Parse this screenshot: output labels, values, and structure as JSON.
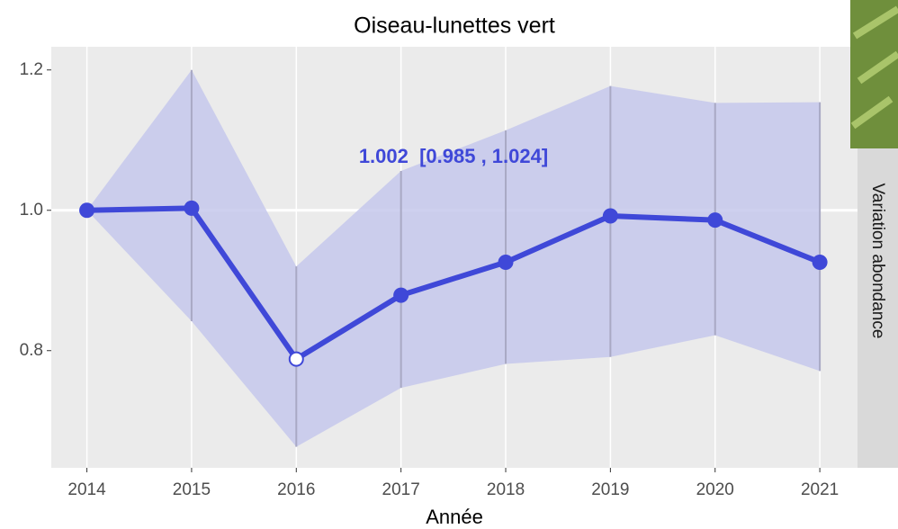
{
  "chart_data": {
    "type": "line",
    "title": "Oiseau-lunettes vert",
    "x_label": "Année",
    "strip_label": "Variation abondance",
    "annotation": "1.002  [0.985 , 1.024]",
    "x": [
      2014,
      2015,
      2016,
      2017,
      2018,
      2019,
      2020,
      2021
    ],
    "series": [
      {
        "color": "#3f48d8",
        "band_color": "#c6c8ec",
        "values": [
          1.0,
          1.003,
          0.788,
          0.879,
          0.926,
          0.992,
          0.986,
          0.926
        ],
        "lower": [
          1.0,
          0.842,
          0.663,
          0.747,
          0.781,
          0.791,
          0.822,
          0.771
        ],
        "upper": [
          1.0,
          1.2,
          0.92,
          1.056,
          1.114,
          1.177,
          1.153,
          1.154
        ]
      }
    ],
    "hollow_x": [
      2016
    ],
    "reference_line": 1.0,
    "xlim": [
      2013.66,
      2021.36
    ],
    "ylim": [
      0.633,
      1.233
    ],
    "xticks": [
      2014,
      2015,
      2016,
      2017,
      2018,
      2019,
      2020,
      2021
    ],
    "yticks": [
      {
        "value": 0.8,
        "label": "0.8"
      },
      {
        "value": 1.0,
        "label": "1.0"
      },
      {
        "value": 1.2,
        "label": "1.2"
      }
    ],
    "xgrid": true
  }
}
